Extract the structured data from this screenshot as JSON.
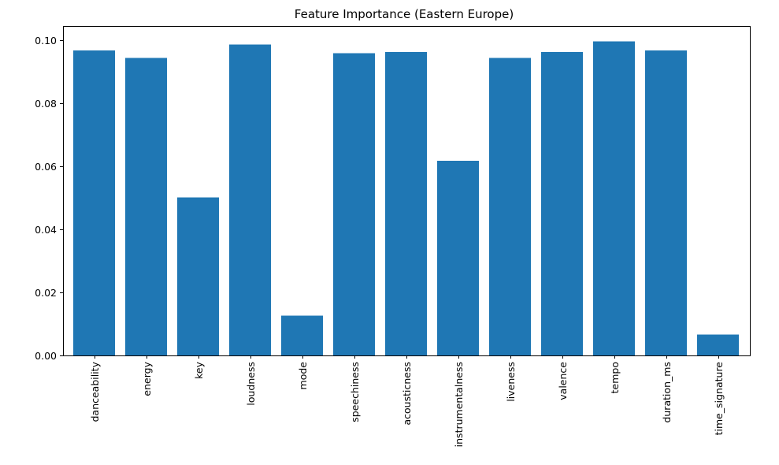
{
  "chart_data": {
    "type": "bar",
    "title": "Feature Importance (Eastern Europe)",
    "xlabel": "",
    "ylabel": "",
    "categories": [
      "danceability",
      "energy",
      "key",
      "loudness",
      "mode",
      "speechiness",
      "acousticness",
      "instrumentalness",
      "liveness",
      "valence",
      "tempo",
      "duration_ms",
      "time_signature"
    ],
    "values": [
      0.0968,
      0.0944,
      0.0501,
      0.0986,
      0.0126,
      0.0959,
      0.0963,
      0.0618,
      0.0944,
      0.0963,
      0.0996,
      0.0968,
      0.0066
    ],
    "ylim": [
      0,
      0.1045
    ],
    "yticks": [
      "0.00",
      "0.02",
      "0.04",
      "0.06",
      "0.08",
      "0.10"
    ],
    "ytick_values": [
      0,
      0.02,
      0.04,
      0.06,
      0.08,
      0.1
    ],
    "bar_color": "#1f77b4",
    "grid": false,
    "legend": "none"
  }
}
